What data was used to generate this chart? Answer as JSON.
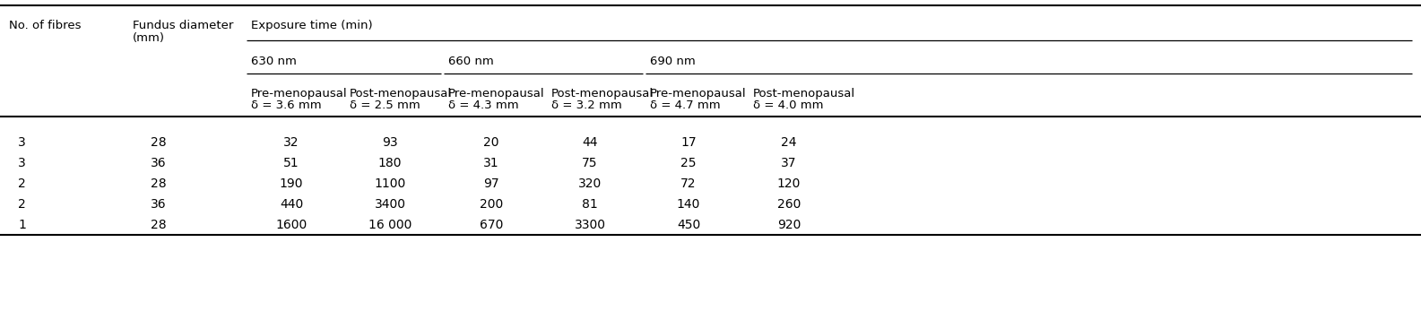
{
  "rows": [
    [
      "3",
      "28",
      "32",
      "93",
      "20",
      "44",
      "17",
      "24"
    ],
    [
      "3",
      "36",
      "51",
      "180",
      "31",
      "75",
      "25",
      "37"
    ],
    [
      "2",
      "28",
      "190",
      "1100",
      "97",
      "320",
      "72",
      "120"
    ],
    [
      "2",
      "36",
      "440",
      "3400",
      "200",
      "81",
      "140",
      "260"
    ],
    [
      "1",
      "28",
      "1600",
      "16 000",
      "670",
      "3300",
      "450",
      "920"
    ]
  ],
  "sub_headers": [
    "Pre-menopausal\nδ = 3.6 mm",
    "Post-menopausal\nδ = 2.5 mm",
    "Pre-menopausal\nδ = 4.3 mm",
    "Post-menopausal\nδ = 3.2 mm",
    "Pre-menopausal\nδ = 4.7 mm",
    "Post-menopausal\nδ = 4.0 mm"
  ],
  "nm_labels": [
    "630 nm",
    "660 nm",
    "690 nm"
  ],
  "bg_color": "#ffffff",
  "text_color": "#000000",
  "line_color": "#000000",
  "figsize": [
    15.85,
    3.57
  ],
  "dpi": 100
}
